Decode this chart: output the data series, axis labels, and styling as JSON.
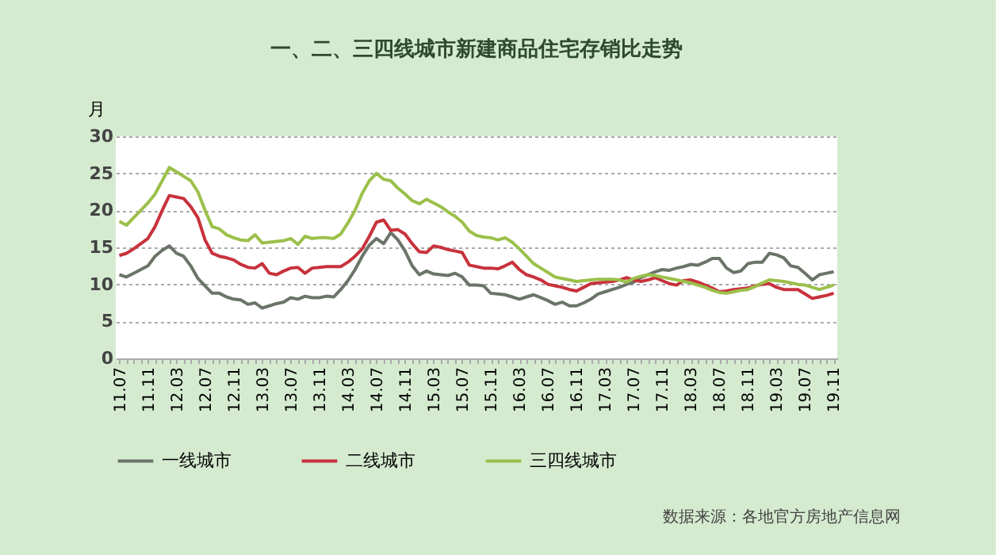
{
  "chart_data": {
    "type": "line",
    "title": "一、二、三四线城市新建商品住宅存销比走势",
    "ylabel": "月",
    "categories": [
      "11.07",
      null,
      null,
      null,
      "11.11",
      null,
      null,
      null,
      "12.03",
      null,
      null,
      null,
      "12.07",
      null,
      null,
      null,
      "12.11",
      null,
      null,
      null,
      "13.03",
      null,
      null,
      null,
      "13.07",
      null,
      null,
      null,
      "13.11",
      null,
      null,
      null,
      "14.03",
      null,
      null,
      null,
      "14.07",
      null,
      null,
      null,
      "14.11",
      null,
      null,
      null,
      "15.03",
      null,
      null,
      null,
      "15.07",
      null,
      null,
      null,
      "15.11",
      null,
      null,
      null,
      "16.03",
      null,
      null,
      null,
      "16.07",
      null,
      null,
      null,
      "16.11",
      null,
      null,
      null,
      "17.03",
      null,
      null,
      null,
      "17.07",
      null,
      null,
      null,
      "17.11",
      null,
      null,
      null,
      "18.03",
      null,
      null,
      null,
      "18.07",
      null,
      null,
      null,
      "18.11",
      null,
      null,
      null,
      "19.03",
      null,
      null,
      null,
      "19.07",
      null,
      null,
      null,
      "19.11"
    ],
    "series": [
      {
        "name": "一线城市",
        "color": "#6b7468",
        "values": [
          11.3,
          11.0,
          11.5,
          12.0,
          12.5,
          13.8,
          14.6,
          15.2,
          14.2,
          13.8,
          12.5,
          10.8,
          9.8,
          8.8,
          8.8,
          8.3,
          8.0,
          7.9,
          7.3,
          7.5,
          6.8,
          7.1,
          7.4,
          7.6,
          8.2,
          8.0,
          8.4,
          8.2,
          8.2,
          8.4,
          8.3,
          9.3,
          10.5,
          12.0,
          13.8,
          15.3,
          16.2,
          15.5,
          17.0,
          16.0,
          14.5,
          12.5,
          11.3,
          11.8,
          11.4,
          11.3,
          11.2,
          11.5,
          11.0,
          9.9,
          9.9,
          9.8,
          8.8,
          8.7,
          8.6,
          8.3,
          8.0,
          8.3,
          8.6,
          8.2,
          7.8,
          7.3,
          7.6,
          7.1,
          7.1,
          7.5,
          8.0,
          8.7,
          9.0,
          9.3,
          9.6,
          10.0,
          10.3,
          10.9,
          11.3,
          11.7,
          12.0,
          11.9,
          12.2,
          12.4,
          12.7,
          12.6,
          13.0,
          13.5,
          13.5,
          12.2,
          11.6,
          11.8,
          12.8,
          13.0,
          13.0,
          14.2,
          14.0,
          13.6,
          12.5,
          12.3,
          11.5,
          10.6,
          11.3,
          11.5,
          11.7
        ]
      },
      {
        "name": "二线城市",
        "color": "#c8323c",
        "values": [
          13.9,
          14.2,
          14.8,
          15.5,
          16.2,
          17.8,
          20.0,
          22.0,
          21.8,
          21.6,
          20.5,
          19.0,
          16.0,
          14.2,
          13.8,
          13.6,
          13.3,
          12.7,
          12.3,
          12.2,
          12.8,
          11.5,
          11.3,
          11.8,
          12.2,
          12.3,
          11.5,
          12.2,
          12.3,
          12.4,
          12.4,
          12.4,
          13.0,
          13.8,
          14.8,
          16.5,
          18.4,
          18.7,
          17.3,
          17.4,
          16.8,
          15.5,
          14.4,
          14.3,
          15.2,
          15.0,
          14.7,
          14.5,
          14.3,
          12.6,
          12.4,
          12.2,
          12.2,
          12.1,
          12.5,
          13.0,
          12.0,
          11.3,
          11.0,
          10.6,
          10.0,
          9.8,
          9.6,
          9.3,
          9.1,
          9.6,
          10.1,
          10.2,
          10.3,
          10.4,
          10.6,
          10.9,
          10.6,
          10.4,
          10.6,
          10.9,
          10.5,
          10.1,
          9.9,
          10.5,
          10.6,
          10.3,
          9.9,
          9.5,
          9.0,
          9.1,
          9.3,
          9.4,
          9.5,
          9.8,
          10.0,
          10.1,
          9.6,
          9.3,
          9.3,
          9.3,
          8.7,
          8.1,
          8.3,
          8.5,
          8.8
        ]
      },
      {
        "name": "三四线城市",
        "color": "#9bc04a",
        "values": [
          18.5,
          18.0,
          19.0,
          20.0,
          21.0,
          22.2,
          24.0,
          25.8,
          25.2,
          24.6,
          24.0,
          22.5,
          20.0,
          17.8,
          17.5,
          16.7,
          16.3,
          16.0,
          15.9,
          16.7,
          15.6,
          15.7,
          15.8,
          15.9,
          16.2,
          15.4,
          16.5,
          16.2,
          16.3,
          16.3,
          16.2,
          16.8,
          18.3,
          20.0,
          22.3,
          24.0,
          25.0,
          24.2,
          24.0,
          23.0,
          22.2,
          21.3,
          20.9,
          21.5,
          21.0,
          20.5,
          19.8,
          19.2,
          18.4,
          17.2,
          16.6,
          16.4,
          16.3,
          16.0,
          16.3,
          15.7,
          14.8,
          13.8,
          12.8,
          12.2,
          11.6,
          11.0,
          10.8,
          10.6,
          10.4,
          10.5,
          10.6,
          10.7,
          10.7,
          10.7,
          10.6,
          10.3,
          10.8,
          11.1,
          11.3,
          11.2,
          11.0,
          10.8,
          10.6,
          10.4,
          10.2,
          9.9,
          9.6,
          9.2,
          8.9,
          8.8,
          9.0,
          9.2,
          9.3,
          9.7,
          10.2,
          10.6,
          10.5,
          10.4,
          10.2,
          10.0,
          9.9,
          9.6,
          9.3,
          9.6,
          9.9
        ]
      }
    ],
    "ylim": [
      0,
      30
    ],
    "yticks": [
      0,
      5,
      10,
      15,
      20,
      25,
      30
    ],
    "grid": "y",
    "legend": "bottom",
    "marker": "none",
    "line_style": "solid",
    "annotations": [
      "数据来源：各地官方房地产信息网"
    ]
  }
}
